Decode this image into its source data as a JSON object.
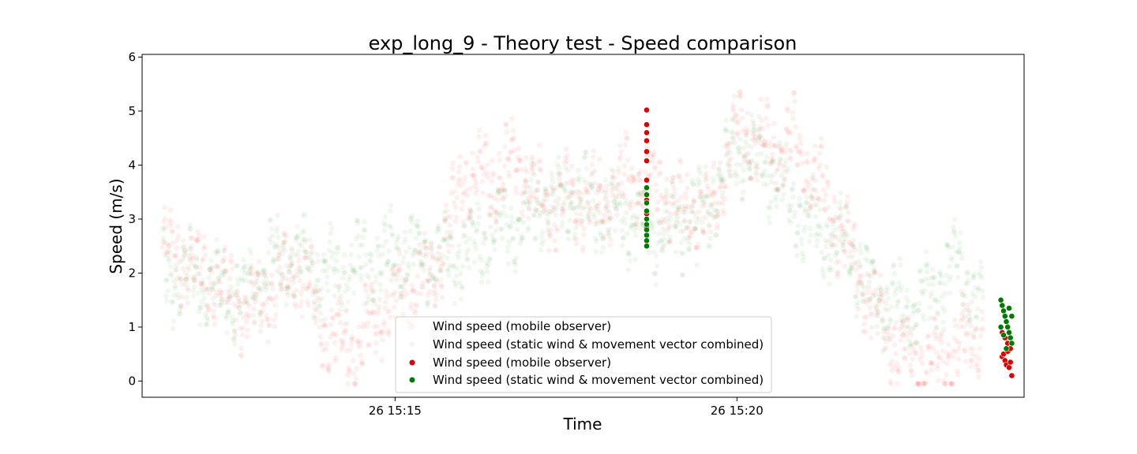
{
  "chart_data": {
    "type": "scatter",
    "title": "exp_long_9 - Theory test - Speed comparison",
    "xlabel": "Time",
    "ylabel": "Speed (m/s)",
    "x_tick_labels": [
      "26 15:15",
      "26 15:20"
    ],
    "x_ticks_min": [
      15,
      20
    ],
    "xlim_min": [
      11.3,
      24.2
    ],
    "ylim": [
      -0.3,
      6.05
    ],
    "y_ticks": [
      0,
      1,
      2,
      3,
      4,
      5,
      6
    ],
    "grid": false,
    "legend_position": "lower center",
    "legend": [
      "Wind speed (mobile observer)",
      "Wind speed (static wind & movement vector combined)",
      "Wind speed (mobile observer)",
      "Wind speed (static wind & movement vector combined)"
    ],
    "colors": {
      "mobile": "#ff0000",
      "static": "#008000",
      "highlight_mobile": "#e00000",
      "highlight_static": "#007a00"
    },
    "series": [
      {
        "name": "Wind speed (mobile observer)",
        "style": "faint",
        "x_min": [
          11.6,
          12.0,
          12.4,
          12.8,
          13.2,
          13.6,
          14.0,
          14.4,
          14.8,
          15.2,
          15.6,
          16.0,
          16.4,
          16.8,
          17.2,
          17.6,
          18.0,
          18.4,
          18.8,
          19.2,
          19.6,
          20.0,
          20.4,
          20.8,
          21.2,
          21.6,
          22.0,
          22.4,
          22.8,
          23.2,
          23.6
        ],
        "y": [
          2.4,
          2.2,
          1.8,
          1.3,
          1.7,
          2.1,
          0.9,
          0.5,
          1.4,
          1.6,
          2.1,
          3.8,
          3.7,
          4.0,
          3.2,
          3.4,
          3.3,
          3.8,
          3.6,
          3.2,
          3.0,
          4.7,
          4.3,
          4.4,
          3.6,
          2.6,
          1.3,
          0.6,
          0.25,
          0.6,
          0.85
        ]
      },
      {
        "name": "Wind speed (static wind & movement vector combined)",
        "style": "faint",
        "x_min": [
          11.6,
          12.0,
          12.4,
          12.8,
          13.2,
          13.6,
          14.0,
          14.4,
          14.8,
          15.2,
          15.6,
          16.0,
          16.4,
          16.8,
          17.2,
          17.6,
          18.0,
          18.4,
          18.8,
          19.2,
          19.6,
          20.0,
          20.4,
          20.8,
          21.2,
          21.6,
          22.0,
          22.4,
          22.8,
          23.2,
          23.6
        ],
        "y": [
          2.0,
          1.9,
          1.7,
          1.6,
          2.2,
          2.3,
          1.9,
          2.1,
          2.3,
          2.4,
          2.2,
          2.4,
          2.7,
          3.0,
          3.3,
          3.4,
          3.2,
          3.0,
          2.8,
          2.9,
          3.3,
          4.3,
          4.0,
          3.3,
          2.7,
          2.5,
          1.6,
          1.3,
          1.5,
          2.2,
          1.3
        ]
      },
      {
        "name": "Wind speed (mobile observer)",
        "style": "highlight",
        "x_min": [
          18.68,
          18.68,
          18.68,
          18.68,
          18.68,
          18.68,
          18.68,
          18.68,
          18.68,
          18.68,
          23.88,
          23.9,
          23.92,
          23.94,
          23.96,
          23.98,
          24.0,
          24.02,
          23.88,
          23.92,
          23.96,
          24.0
        ],
        "y": [
          5.02,
          4.75,
          4.6,
          4.45,
          4.25,
          4.08,
          3.72,
          3.35,
          3.1,
          2.85,
          0.45,
          0.5,
          0.38,
          0.3,
          0.55,
          0.25,
          0.6,
          0.1,
          0.9,
          0.8,
          0.7,
          0.35
        ]
      },
      {
        "name": "Wind speed (static wind & movement vector combined)",
        "style": "highlight",
        "x_min": [
          18.68,
          18.68,
          18.68,
          18.68,
          18.68,
          18.68,
          18.68,
          18.68,
          18.68,
          18.68,
          23.86,
          23.88,
          23.9,
          23.92,
          23.94,
          23.96,
          23.98,
          24.0,
          24.02,
          23.86,
          23.9,
          23.94,
          23.98,
          24.02
        ],
        "y": [
          3.58,
          3.45,
          3.3,
          3.15,
          3.0,
          2.9,
          2.8,
          2.7,
          2.6,
          2.5,
          1.5,
          1.4,
          1.3,
          1.2,
          1.1,
          1.0,
          0.9,
          0.8,
          0.7,
          1.0,
          0.85,
          0.6,
          1.35,
          1.2
        ]
      }
    ]
  }
}
